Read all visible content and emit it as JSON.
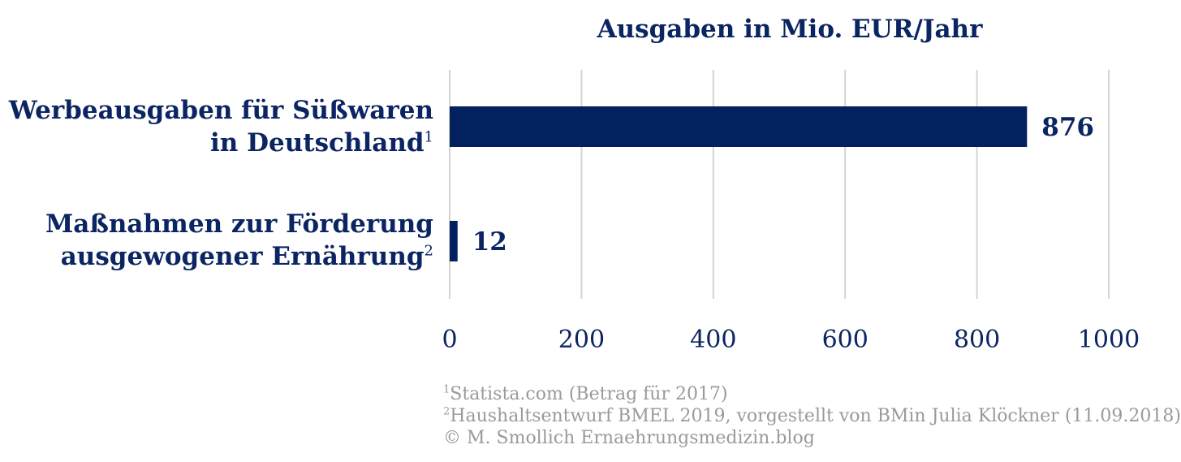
{
  "chart_data": {
    "type": "bar",
    "orientation": "horizontal",
    "title": "Ausgaben in Mio. EUR/Jahr",
    "categories": [
      {
        "lines": [
          "Werbeausgaben für Süßwaren",
          "in Deutschland"
        ],
        "sup": "1"
      },
      {
        "lines": [
          "Maßnahmen zur Förderung",
          "ausgewogener Ernährung"
        ],
        "sup": "2"
      }
    ],
    "values": [
      876,
      12
    ],
    "data_labels": [
      "876",
      "12"
    ],
    "xlim": [
      0,
      1000
    ],
    "xticks": [
      0,
      200,
      400,
      600,
      800,
      1000
    ],
    "grid": true,
    "bar_color": "#03215f",
    "text_color": "#0b2462"
  },
  "footnotes": [
    {
      "sup": "1",
      "text": "Statista.com (Betrag für 2017)"
    },
    {
      "sup": "2",
      "text": "Haushaltsentwurf BMEL 2019, vorgestellt von BMin Julia Klöckner (11.09.2018)"
    },
    {
      "sup": "",
      "text": "© M. Smollich Ernaehrungsmedizin.blog"
    }
  ]
}
